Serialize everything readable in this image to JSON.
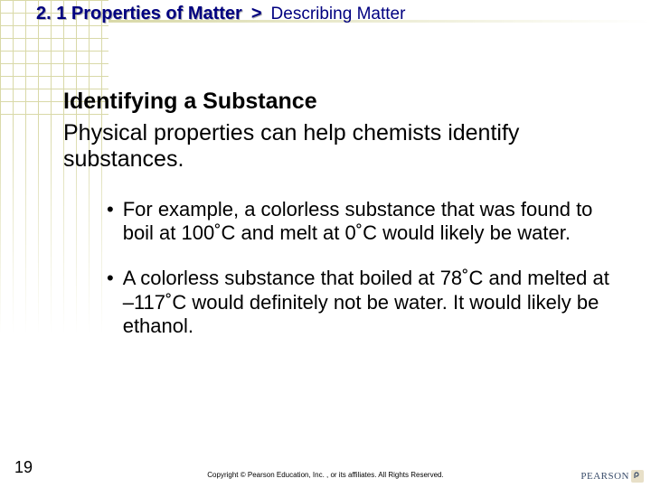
{
  "colors": {
    "grid": "#d9d9a8",
    "heading": "#000080",
    "text": "#000000",
    "logo_text": "#3a4d6b",
    "logo_mark_bg": "#e8e0c8",
    "background": "#ffffff"
  },
  "grid": {
    "h_spacing": 14,
    "v_spacing": 14,
    "rows": 9,
    "cols": 8
  },
  "header": {
    "chapter": "2. 1 Properties of Matter",
    "chevron": ">",
    "subtitle": "Describing Matter"
  },
  "content": {
    "heading": "Identifying a Substance",
    "paragraph": "Physical properties can help chemists identify substances.",
    "bullets": [
      "For example, a colorless substance that was found to boil at 100˚C and melt at 0˚C would likely be water.",
      "A colorless substance that boiled at 78˚C and melted at –117˚C would definitely not be water. It would likely be ethanol."
    ]
  },
  "footer": {
    "page_number": "19",
    "copyright": "Copyright © Pearson Education, Inc. , or its affiliates. All Rights Reserved.",
    "logo_text": "PEARSON"
  }
}
